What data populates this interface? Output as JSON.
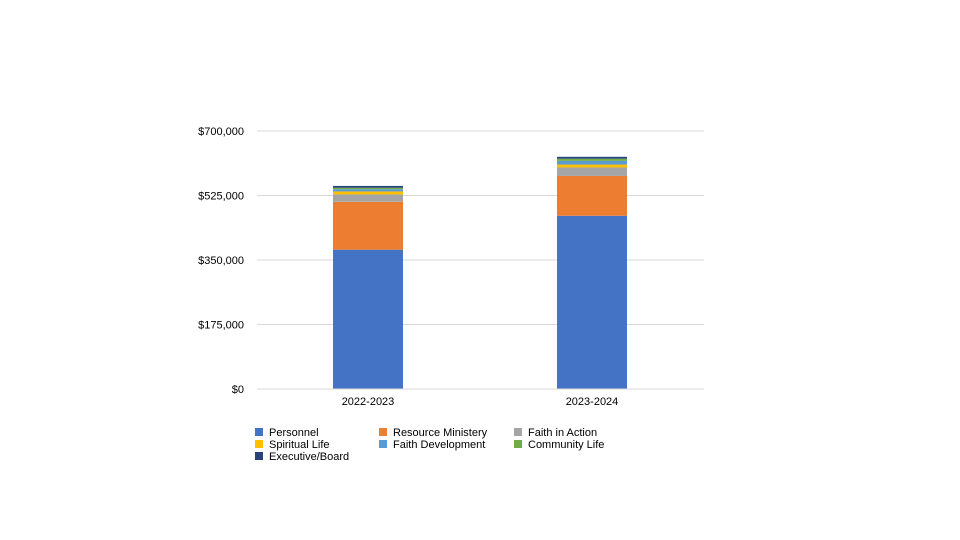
{
  "chart_data": {
    "type": "bar",
    "stacked": true,
    "categories": [
      "2022-2023",
      "2023-2024"
    ],
    "series": [
      {
        "name": "Personnel",
        "color": "#4472c4",
        "values": [
          378000,
          470000
        ]
      },
      {
        "name": "Resource Ministery",
        "color": "#ed7d31",
        "values": [
          130000,
          108000
        ]
      },
      {
        "name": "Faith in Action",
        "color": "#a5a5a5",
        "values": [
          20000,
          23000
        ]
      },
      {
        "name": "Spiritual Life",
        "color": "#ffc000",
        "values": [
          8000,
          8000
        ]
      },
      {
        "name": "Faith Development",
        "color": "#5b9bd5",
        "values": [
          6000,
          10000
        ]
      },
      {
        "name": "Community Life",
        "color": "#70ad47",
        "values": [
          4000,
          6000
        ]
      },
      {
        "name": "Executive/Board",
        "color": "#264478",
        "values": [
          5000,
          5000
        ]
      }
    ],
    "yticks": [
      "$0",
      "$175,000",
      "$350,000",
      "$525,000",
      "$700,000"
    ],
    "ylim": [
      0,
      700000
    ],
    "grid": true,
    "legend_position": "bottom"
  }
}
